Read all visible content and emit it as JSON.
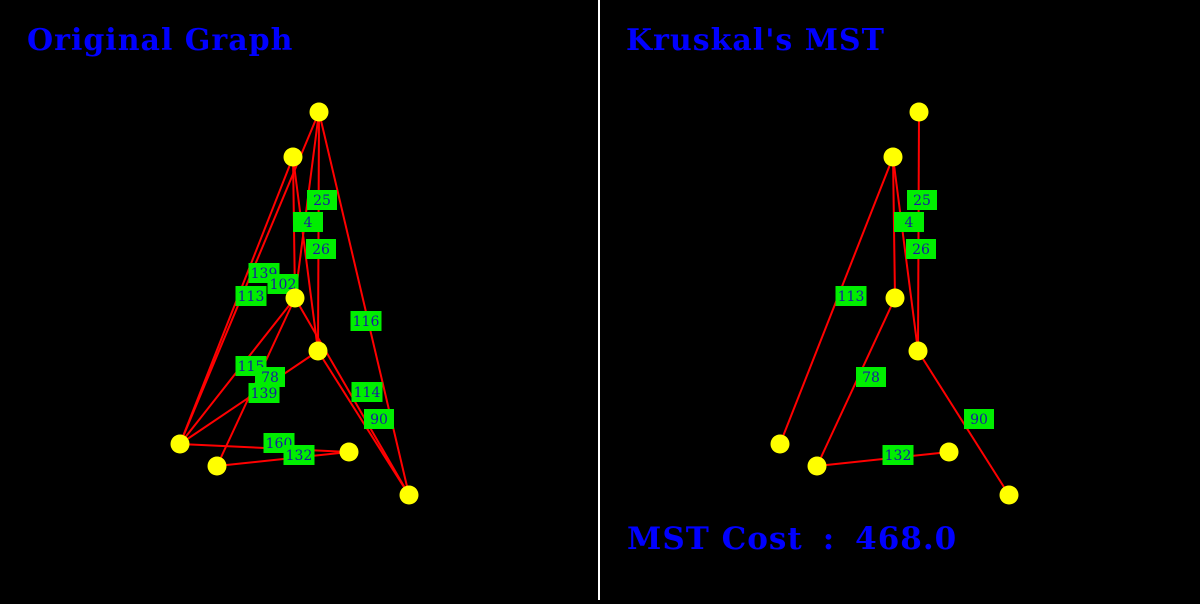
{
  "colors": {
    "background": "#000000",
    "divider": "#ffffff",
    "edge": "#ff0000",
    "node": "#ffff00",
    "label_bg": "#00ee00",
    "label_text": "#1a1aa0",
    "title": "#0000ff"
  },
  "left_panel": {
    "title": "Original Graph",
    "edges": [
      {
        "from": 0,
        "to": 3,
        "weight": "25"
      },
      {
        "from": 1,
        "to": 2,
        "weight": "4"
      },
      {
        "from": 1,
        "to": 3,
        "weight": "26"
      },
      {
        "from": 1,
        "to": 6,
        "weight": "113"
      },
      {
        "from": 0,
        "to": 6,
        "weight": "139"
      },
      {
        "from": 0,
        "to": 2,
        "weight": "102"
      },
      {
        "from": 0,
        "to": 8,
        "weight": "116"
      },
      {
        "from": 2,
        "to": 6,
        "weight": "115"
      },
      {
        "from": 2,
        "to": 7,
        "weight": "78"
      },
      {
        "from": 3,
        "to": 6,
        "weight": "139"
      },
      {
        "from": 2,
        "to": 8,
        "weight": "114"
      },
      {
        "from": 3,
        "to": 8,
        "weight": "90"
      },
      {
        "from": 6,
        "to": 5,
        "weight": "160"
      },
      {
        "from": 7,
        "to": 5,
        "weight": "132"
      }
    ]
  },
  "right_panel": {
    "title": "Kruskal's MST",
    "edges": [
      {
        "from": 0,
        "to": 3,
        "weight": "25"
      },
      {
        "from": 1,
        "to": 2,
        "weight": "4"
      },
      {
        "from": 1,
        "to": 3,
        "weight": "26"
      },
      {
        "from": 1,
        "to": 6,
        "weight": "113"
      },
      {
        "from": 2,
        "to": 7,
        "weight": "78"
      },
      {
        "from": 3,
        "to": 8,
        "weight": "90"
      },
      {
        "from": 7,
        "to": 5,
        "weight": "132"
      }
    ],
    "cost_label": "MST Cost",
    "cost_separator": ":",
    "cost_value": "468.0"
  }
}
